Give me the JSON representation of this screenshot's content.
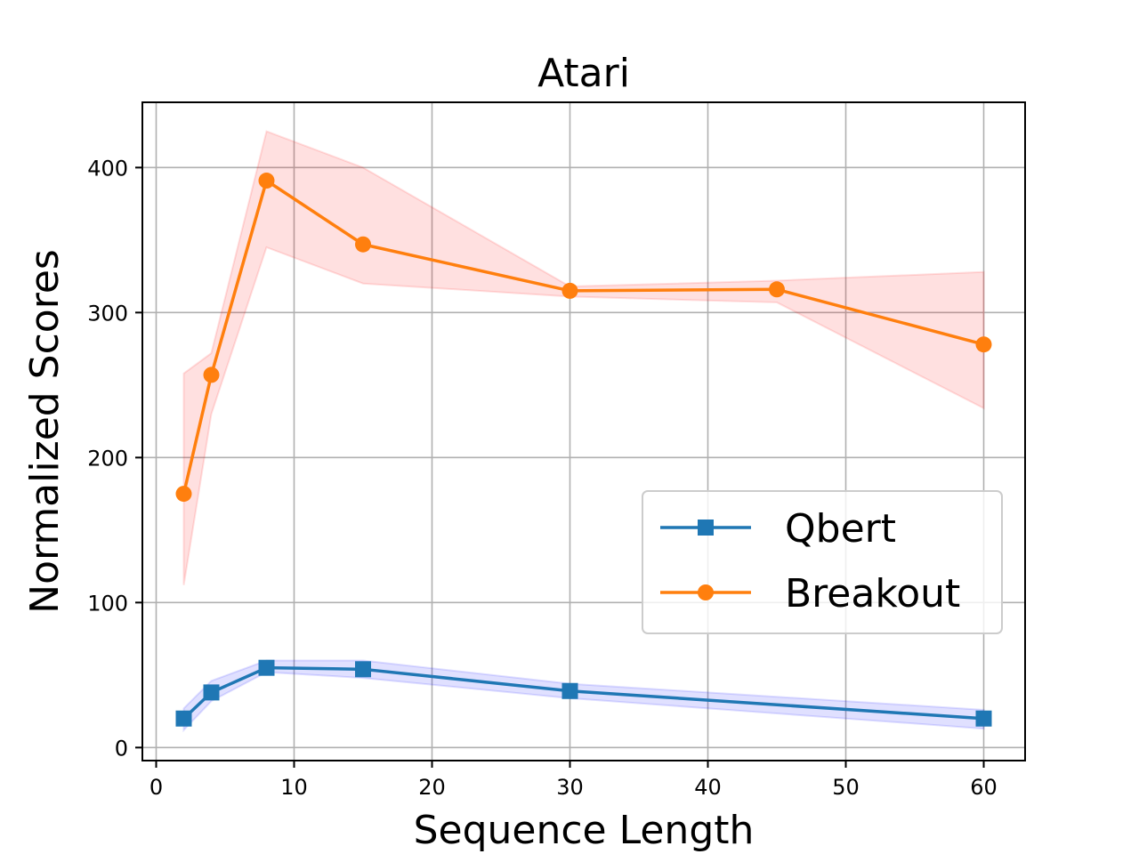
{
  "chart_data": {
    "type": "line",
    "title": "Atari",
    "xlabel": "Sequence Length",
    "ylabel": "Normalized Scores",
    "xlim": [
      -1,
      63
    ],
    "ylim": [
      -9,
      445
    ],
    "xticks": [
      0,
      10,
      20,
      30,
      40,
      50,
      60
    ],
    "yticks": [
      0,
      100,
      200,
      300,
      400
    ],
    "grid": true,
    "legend_position": "center-right",
    "series": [
      {
        "name": "Qbert",
        "color": "#1f77b4",
        "band_color": "#0000ff",
        "marker": "square",
        "x": [
          2,
          4,
          8,
          15,
          30,
          60
        ],
        "y": [
          20,
          38,
          55,
          54,
          39,
          20
        ],
        "y_upper": [
          27,
          46,
          60,
          60,
          44,
          26
        ],
        "y_lower": [
          12,
          32,
          52,
          48,
          34,
          13
        ]
      },
      {
        "name": "Breakout",
        "color": "#ff7f0e",
        "band_color": "#ff0000",
        "marker": "circle",
        "x": [
          2,
          4,
          8,
          15,
          30,
          45,
          60
        ],
        "y": [
          175,
          257,
          391,
          347,
          315,
          316,
          278
        ],
        "y_upper": [
          258,
          272,
          425,
          400,
          318,
          322,
          328
        ],
        "y_lower": [
          112,
          230,
          345,
          320,
          311,
          307,
          234
        ]
      }
    ]
  }
}
